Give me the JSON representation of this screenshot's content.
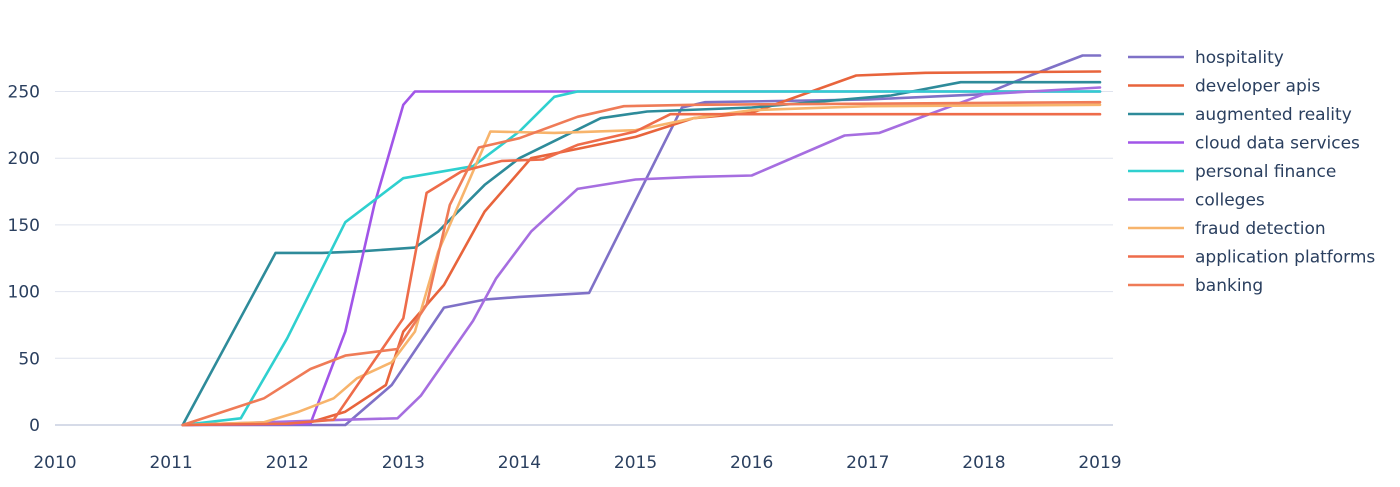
{
  "chart_data": {
    "type": "line",
    "title": "",
    "xlabel": "",
    "ylabel": "",
    "xlim": [
      2010,
      2019
    ],
    "ylim": [
      0,
      280
    ],
    "x_ticks": [
      "2010",
      "2011",
      "2012",
      "2013",
      "2014",
      "2015",
      "2016",
      "2017",
      "2018",
      "2019"
    ],
    "y_ticks": [
      "0",
      "50",
      "100",
      "150",
      "200",
      "250"
    ],
    "grid": true,
    "legend_position": "right",
    "series": [
      {
        "name": "hospitality",
        "color": "#7f71c7",
        "points": [
          [
            2011.1,
            0
          ],
          [
            2012.5,
            0
          ],
          [
            2012.9,
            30
          ],
          [
            2013.35,
            88
          ],
          [
            2013.7,
            94
          ],
          [
            2014.0,
            96
          ],
          [
            2014.6,
            99
          ],
          [
            2015.4,
            238
          ],
          [
            2015.6,
            242
          ],
          [
            2017.0,
            244
          ],
          [
            2018.0,
            248
          ],
          [
            2018.4,
            262
          ],
          [
            2018.85,
            277
          ],
          [
            2019.0,
            277
          ]
        ]
      },
      {
        "name": "developer apis",
        "color": "#e8643c",
        "points": [
          [
            2011.1,
            0
          ],
          [
            2012.2,
            2
          ],
          [
            2012.5,
            10
          ],
          [
            2012.85,
            30
          ],
          [
            2013.0,
            70
          ],
          [
            2013.35,
            105
          ],
          [
            2013.7,
            160
          ],
          [
            2014.1,
            200
          ],
          [
            2014.5,
            207
          ],
          [
            2015.0,
            216
          ],
          [
            2015.5,
            230
          ],
          [
            2016.0,
            234
          ],
          [
            2016.9,
            262
          ],
          [
            2017.5,
            264
          ],
          [
            2019.0,
            265
          ]
        ]
      },
      {
        "name": "augmented reality",
        "color": "#2e8b9a",
        "points": [
          [
            2011.1,
            0
          ],
          [
            2011.9,
            129
          ],
          [
            2012.3,
            129
          ],
          [
            2012.6,
            130
          ],
          [
            2013.1,
            133
          ],
          [
            2013.3,
            145
          ],
          [
            2013.7,
            180
          ],
          [
            2014.0,
            200
          ],
          [
            2014.7,
            230
          ],
          [
            2015.1,
            235
          ],
          [
            2016.0,
            238
          ],
          [
            2017.2,
            247
          ],
          [
            2017.8,
            257
          ],
          [
            2019.0,
            257
          ]
        ]
      },
      {
        "name": "cloud data services",
        "color": "#a155e8",
        "points": [
          [
            2011.1,
            0
          ],
          [
            2012.2,
            1
          ],
          [
            2012.5,
            70
          ],
          [
            2012.75,
            165
          ],
          [
            2013.0,
            240
          ],
          [
            2013.1,
            250
          ],
          [
            2019.0,
            250
          ]
        ]
      },
      {
        "name": "personal finance",
        "color": "#2fd0cf",
        "points": [
          [
            2011.1,
            0
          ],
          [
            2011.6,
            5
          ],
          [
            2012.0,
            65
          ],
          [
            2012.5,
            152
          ],
          [
            2013.0,
            185
          ],
          [
            2013.6,
            194
          ],
          [
            2014.0,
            220
          ],
          [
            2014.3,
            246
          ],
          [
            2014.5,
            250
          ],
          [
            2019.0,
            250
          ]
        ]
      },
      {
        "name": "colleges",
        "color": "#a66ee0",
        "points": [
          [
            2011.1,
            0
          ],
          [
            2012.5,
            4
          ],
          [
            2012.95,
            5
          ],
          [
            2013.15,
            22
          ],
          [
            2013.6,
            78
          ],
          [
            2013.8,
            110
          ],
          [
            2014.1,
            145
          ],
          [
            2014.5,
            177
          ],
          [
            2015.0,
            184
          ],
          [
            2015.5,
            186
          ],
          [
            2016.0,
            187
          ],
          [
            2016.8,
            217
          ],
          [
            2017.1,
            219
          ],
          [
            2017.5,
            232
          ],
          [
            2018.0,
            248
          ],
          [
            2019.0,
            253
          ]
        ]
      },
      {
        "name": "fraud detection",
        "color": "#f7b46c",
        "points": [
          [
            2011.1,
            0
          ],
          [
            2011.8,
            2
          ],
          [
            2012.1,
            10
          ],
          [
            2012.4,
            20
          ],
          [
            2012.6,
            35
          ],
          [
            2012.9,
            47
          ],
          [
            2013.1,
            70
          ],
          [
            2013.3,
            130
          ],
          [
            2013.55,
            180
          ],
          [
            2013.75,
            220
          ],
          [
            2014.3,
            219
          ],
          [
            2015.0,
            221
          ],
          [
            2015.5,
            230
          ],
          [
            2016.0,
            236
          ],
          [
            2017.0,
            239
          ],
          [
            2019.0,
            240
          ]
        ]
      },
      {
        "name": "application platforms",
        "color": "#ee6c4a",
        "points": [
          [
            2011.1,
            0
          ],
          [
            2012.0,
            1
          ],
          [
            2012.4,
            4
          ],
          [
            2013.0,
            80
          ],
          [
            2013.2,
            174
          ],
          [
            2013.5,
            190
          ],
          [
            2013.85,
            198
          ],
          [
            2014.2,
            199
          ],
          [
            2014.5,
            210
          ],
          [
            2015.0,
            220
          ],
          [
            2015.3,
            233
          ],
          [
            2019.0,
            233
          ]
        ]
      },
      {
        "name": "banking",
        "color": "#ef7b57",
        "points": [
          [
            2011.1,
            0
          ],
          [
            2011.8,
            20
          ],
          [
            2012.2,
            42
          ],
          [
            2012.5,
            52
          ],
          [
            2012.95,
            57
          ],
          [
            2013.2,
            90
          ],
          [
            2013.4,
            165
          ],
          [
            2013.65,
            208
          ],
          [
            2014.0,
            215
          ],
          [
            2014.5,
            231
          ],
          [
            2014.9,
            239
          ],
          [
            2015.5,
            240
          ],
          [
            2019.0,
            242
          ]
        ]
      }
    ]
  }
}
